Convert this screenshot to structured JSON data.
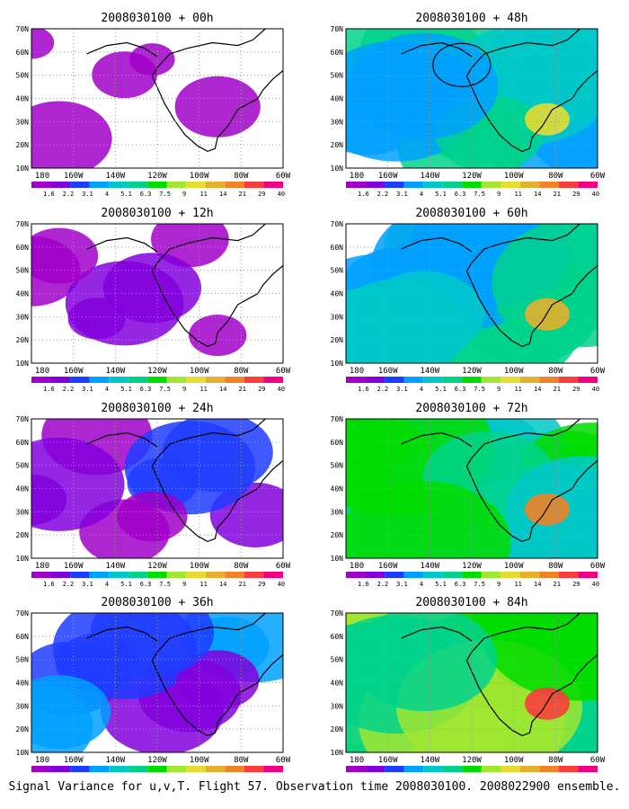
{
  "caption": "Signal Variance for u,v,T. Flight 57. Observation time 2008030100. 2008022900 ensemble.",
  "colorbar": {
    "labels": [
      "1.6",
      "2.2",
      "3.1",
      "4",
      "5.1",
      "6.3",
      "7.5",
      "9",
      "11",
      "14",
      "21",
      "29",
      "40"
    ],
    "colors": [
      "#a000c8",
      "#8200dc",
      "#1e3cff",
      "#00a0ff",
      "#00c8c8",
      "#00d28c",
      "#00dc00",
      "#a0e632",
      "#e6dc32",
      "#e6af2d",
      "#f08228",
      "#fa3c3c",
      "#f00082"
    ]
  },
  "lat_labels": [
    "70N",
    "60N",
    "50N",
    "40N",
    "30N",
    "20N",
    "10N"
  ],
  "lon_labels": [
    "180",
    "160W",
    "140W",
    "120W",
    "100W",
    "80W",
    "60W"
  ],
  "panels": [
    {
      "title": "2008030100 + 00h",
      "level": 0
    },
    {
      "title": "2008030100 + 48h",
      "level": 5,
      "circle": true
    },
    {
      "title": "2008030100 + 12h",
      "level": 1
    },
    {
      "title": "2008030100 + 60h",
      "level": 6
    },
    {
      "title": "2008030100 + 24h",
      "level": 2
    },
    {
      "title": "2008030100 + 72h",
      "level": 7
    },
    {
      "title": "2008030100 + 36h",
      "level": 3
    },
    {
      "title": "2008030100 + 84h",
      "level": 8
    }
  ]
}
